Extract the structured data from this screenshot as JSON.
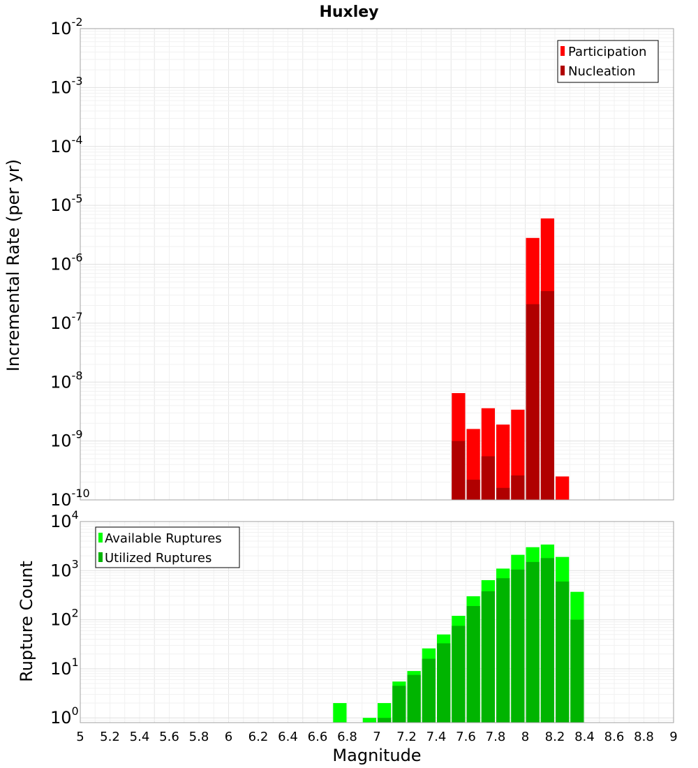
{
  "chart_data": [
    {
      "id": "rate",
      "type": "bar",
      "title": "Huxley",
      "xlabel": "",
      "ylabel": "Incremental Rate (per yr)",
      "ylog": true,
      "ylim": [
        1e-10,
        0.01
      ],
      "xlim": [
        5,
        9
      ],
      "grid": true,
      "legend_position": "top-right",
      "bar_width": 0.1,
      "series": [
        {
          "name": "Participation",
          "color": "#ff0000",
          "x": [
            7.55,
            7.65,
            7.75,
            7.85,
            7.95,
            8.05,
            8.15,
            8.25
          ],
          "values": [
            6.5e-09,
            1.6e-09,
            3.6e-09,
            1.9e-09,
            3.4e-09,
            2.8e-06,
            6e-06,
            2.5e-10
          ]
        },
        {
          "name": "Nucleation",
          "color": "#b00000",
          "x": [
            7.55,
            7.65,
            7.75,
            7.85,
            7.95,
            8.05,
            8.15
          ],
          "values": [
            1e-09,
            2.2e-10,
            5.5e-10,
            1.6e-10,
            2.6e-10,
            2.1e-07,
            3.5e-07
          ]
        }
      ]
    },
    {
      "id": "count",
      "type": "bar",
      "title": "",
      "xlabel": "Magnitude",
      "ylabel": "Rupture Count",
      "ylog": true,
      "ylim": [
        0.8,
        10000
      ],
      "xlim": [
        5,
        9
      ],
      "xticks": [
        "5",
        "5.2",
        "5.4",
        "5.6",
        "5.8",
        "6",
        "6.2",
        "6.4",
        "6.6",
        "6.8",
        "7",
        "7.2",
        "7.4",
        "7.6",
        "7.8",
        "8",
        "8.2",
        "8.4",
        "8.6",
        "8.8",
        "9"
      ],
      "grid": true,
      "legend_position": "top-left",
      "bar_width": 0.1,
      "series": [
        {
          "name": "Available Ruptures",
          "color": "#00ff00",
          "x": [
            6.75,
            6.95,
            7.05,
            7.15,
            7.25,
            7.35,
            7.45,
            7.55,
            7.65,
            7.75,
            7.85,
            7.95,
            8.05,
            8.15,
            8.25,
            8.35
          ],
          "values": [
            2,
            1,
            2,
            5.5,
            9,
            26,
            50,
            120,
            300,
            640,
            1100,
            2100,
            3000,
            3400,
            1900,
            370
          ]
        },
        {
          "name": "Utilized Ruptures",
          "color": "#00b400",
          "x": [
            7.05,
            7.15,
            7.25,
            7.35,
            7.45,
            7.55,
            7.65,
            7.75,
            7.85,
            7.95,
            8.05,
            8.15,
            8.25,
            8.35
          ],
          "values": [
            1,
            4.5,
            7.5,
            16,
            33,
            75,
            190,
            380,
            700,
            1050,
            1500,
            1800,
            600,
            100
          ]
        }
      ]
    }
  ]
}
